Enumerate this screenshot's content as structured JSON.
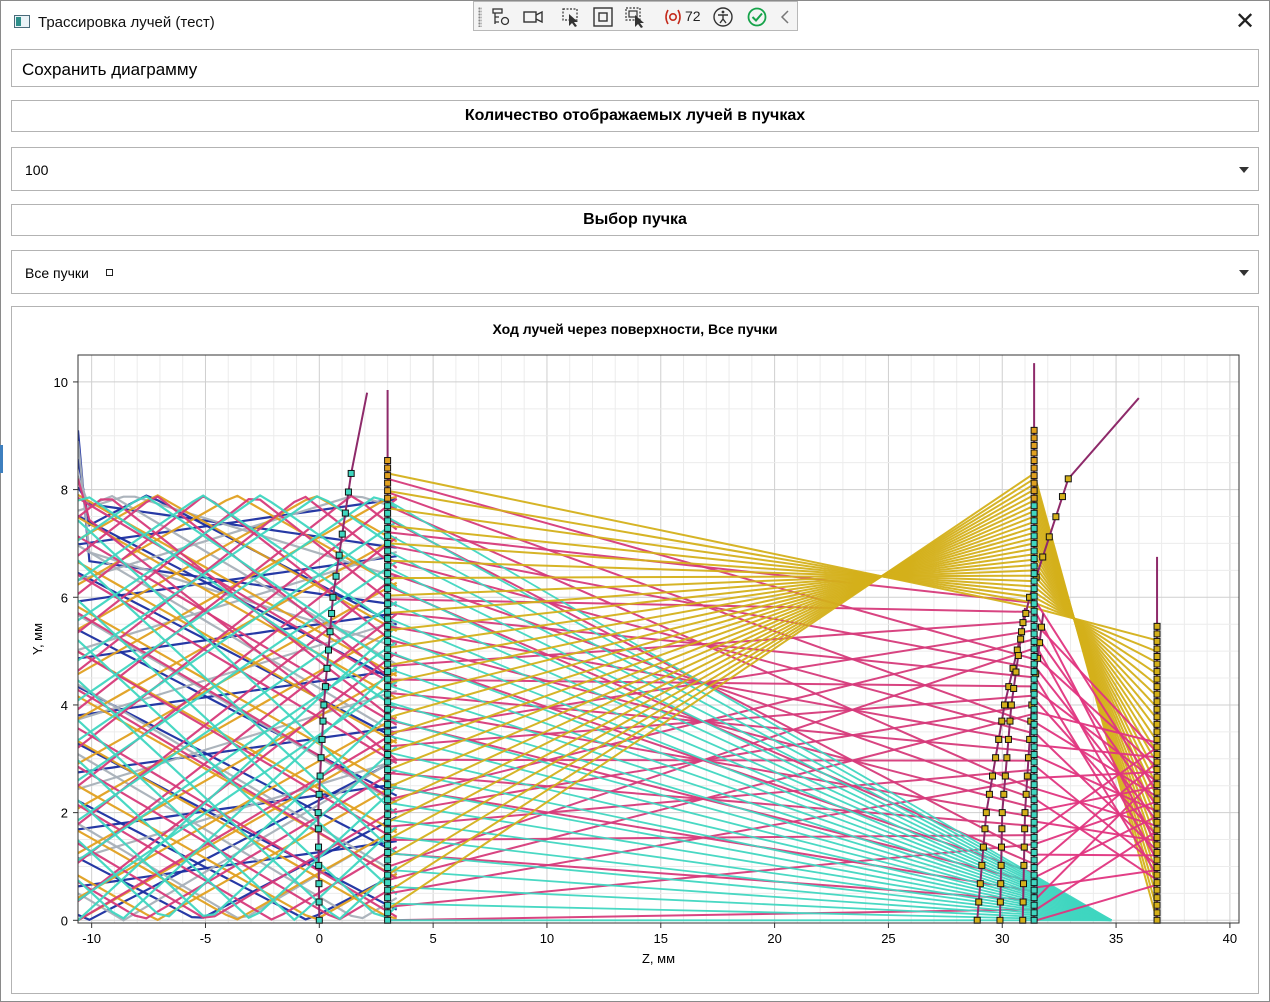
{
  "window": {
    "title": "Трассировка лучей (тест)",
    "close_glyph": "✕"
  },
  "debug_toolbar": {
    "icons": [
      "live-visual-tree-icon",
      "record-icon",
      "select-element-icon",
      "display-adorners-icon",
      "track-focus-icon",
      "binding-failures-icon",
      "accessibility-icon",
      "hot-reload-ok-icon",
      "collapse-icon"
    ],
    "binding_failures_count": "72",
    "colors": {
      "error": "#c42b1c",
      "ok": "#16a34a"
    }
  },
  "controls": {
    "save_button": "Сохранить диаграмму",
    "rays_header": "Количество отображаемых лучей в пучках",
    "rays_count_value": "100",
    "beam_header": "Выбор пучка",
    "beam_value": "Все пучки"
  },
  "chart_data": {
    "type": "line",
    "title": "Ход лучей через поверхности, Все пучки",
    "xlabel": "Z, мм",
    "ylabel": "Y, мм",
    "xlim": [
      -10.6,
      40.4
    ],
    "ylim": [
      -0.05,
      10.5
    ],
    "xticks": [
      -10,
      -5,
      0,
      5,
      10,
      15,
      20,
      25,
      30,
      35,
      40
    ],
    "yticks": [
      0,
      2,
      4,
      6,
      8,
      10
    ],
    "grid": true,
    "legend": "none",
    "colors": {
      "blue": "#1a2ea0",
      "gray": "#a8b0b8",
      "orange": "#e0a020",
      "magenta": "#d63a7a",
      "cyan": "#3fd6c0",
      "yellow": "#d4b01a",
      "pink": "#e0357f",
      "surface": "#8e2a6a"
    },
    "surfaces": [
      {
        "kind": "curved",
        "points": [
          [
            0,
            0
          ],
          [
            -0.05,
            2
          ],
          [
            0.2,
            4
          ],
          [
            0.6,
            6
          ],
          [
            1.4,
            8.3
          ],
          [
            2.1,
            9.8
          ]
        ]
      },
      {
        "kind": "plane",
        "z": 3,
        "y_top": 9.85
      },
      {
        "kind": "curved",
        "points": [
          [
            28.9,
            0
          ],
          [
            29.3,
            2
          ],
          [
            30.1,
            4
          ],
          [
            31.2,
            6
          ],
          [
            32.9,
            8.2
          ],
          [
            36.0,
            9.7
          ]
        ]
      },
      {
        "kind": "curved",
        "points": [
          [
            29.9,
            0
          ],
          [
            30.0,
            2
          ],
          [
            30.4,
            4
          ],
          [
            31.0,
            5.8
          ]
        ]
      },
      {
        "kind": "curved",
        "points": [
          [
            30.9,
            0
          ],
          [
            31.0,
            2
          ],
          [
            31.3,
            4
          ],
          [
            31.8,
            5.7
          ]
        ]
      },
      {
        "kind": "plane",
        "z": 31.4,
        "y_top": 10.35
      },
      {
        "kind": "plane",
        "z": 36.8,
        "y_top": 6.75
      }
    ],
    "beams": [
      {
        "color": "blue",
        "start_z": -10.6,
        "y_range": [
          0.1,
          9.1
        ],
        "slope": -0.08,
        "count": 18
      },
      {
        "color": "gray",
        "start_z": -10.6,
        "y_range": [
          0.5,
          8.9
        ],
        "slope": -0.06,
        "count": 14
      },
      {
        "color": "orange",
        "start_z": -10.6,
        "y_range": [
          0,
          7.9
        ],
        "slope": 0.0,
        "count": 20
      },
      {
        "color": "magenta",
        "start_z": -10.6,
        "y_range": [
          0,
          8.2
        ],
        "slope": 0.04,
        "count": 24
      },
      {
        "color": "cyan",
        "start_z": -10.6,
        "y_range": [
          0,
          7.8
        ],
        "slope": -0.05,
        "count": 22
      }
    ],
    "converge_yellow": {
      "from_surface_z": 3,
      "to_z": 31.4,
      "y_range": [
        0.2,
        8.3
      ],
      "exit_to": [
        36.8,
        0,
        5.2
      ]
    },
    "converge_pink": {
      "to_z": 31.5,
      "fan_y_range": [
        0,
        5.9
      ],
      "focus": [
        36.8,
        3.3
      ]
    },
    "converge_cyan": {
      "focus": [
        34.8,
        0.0
      ]
    }
  }
}
